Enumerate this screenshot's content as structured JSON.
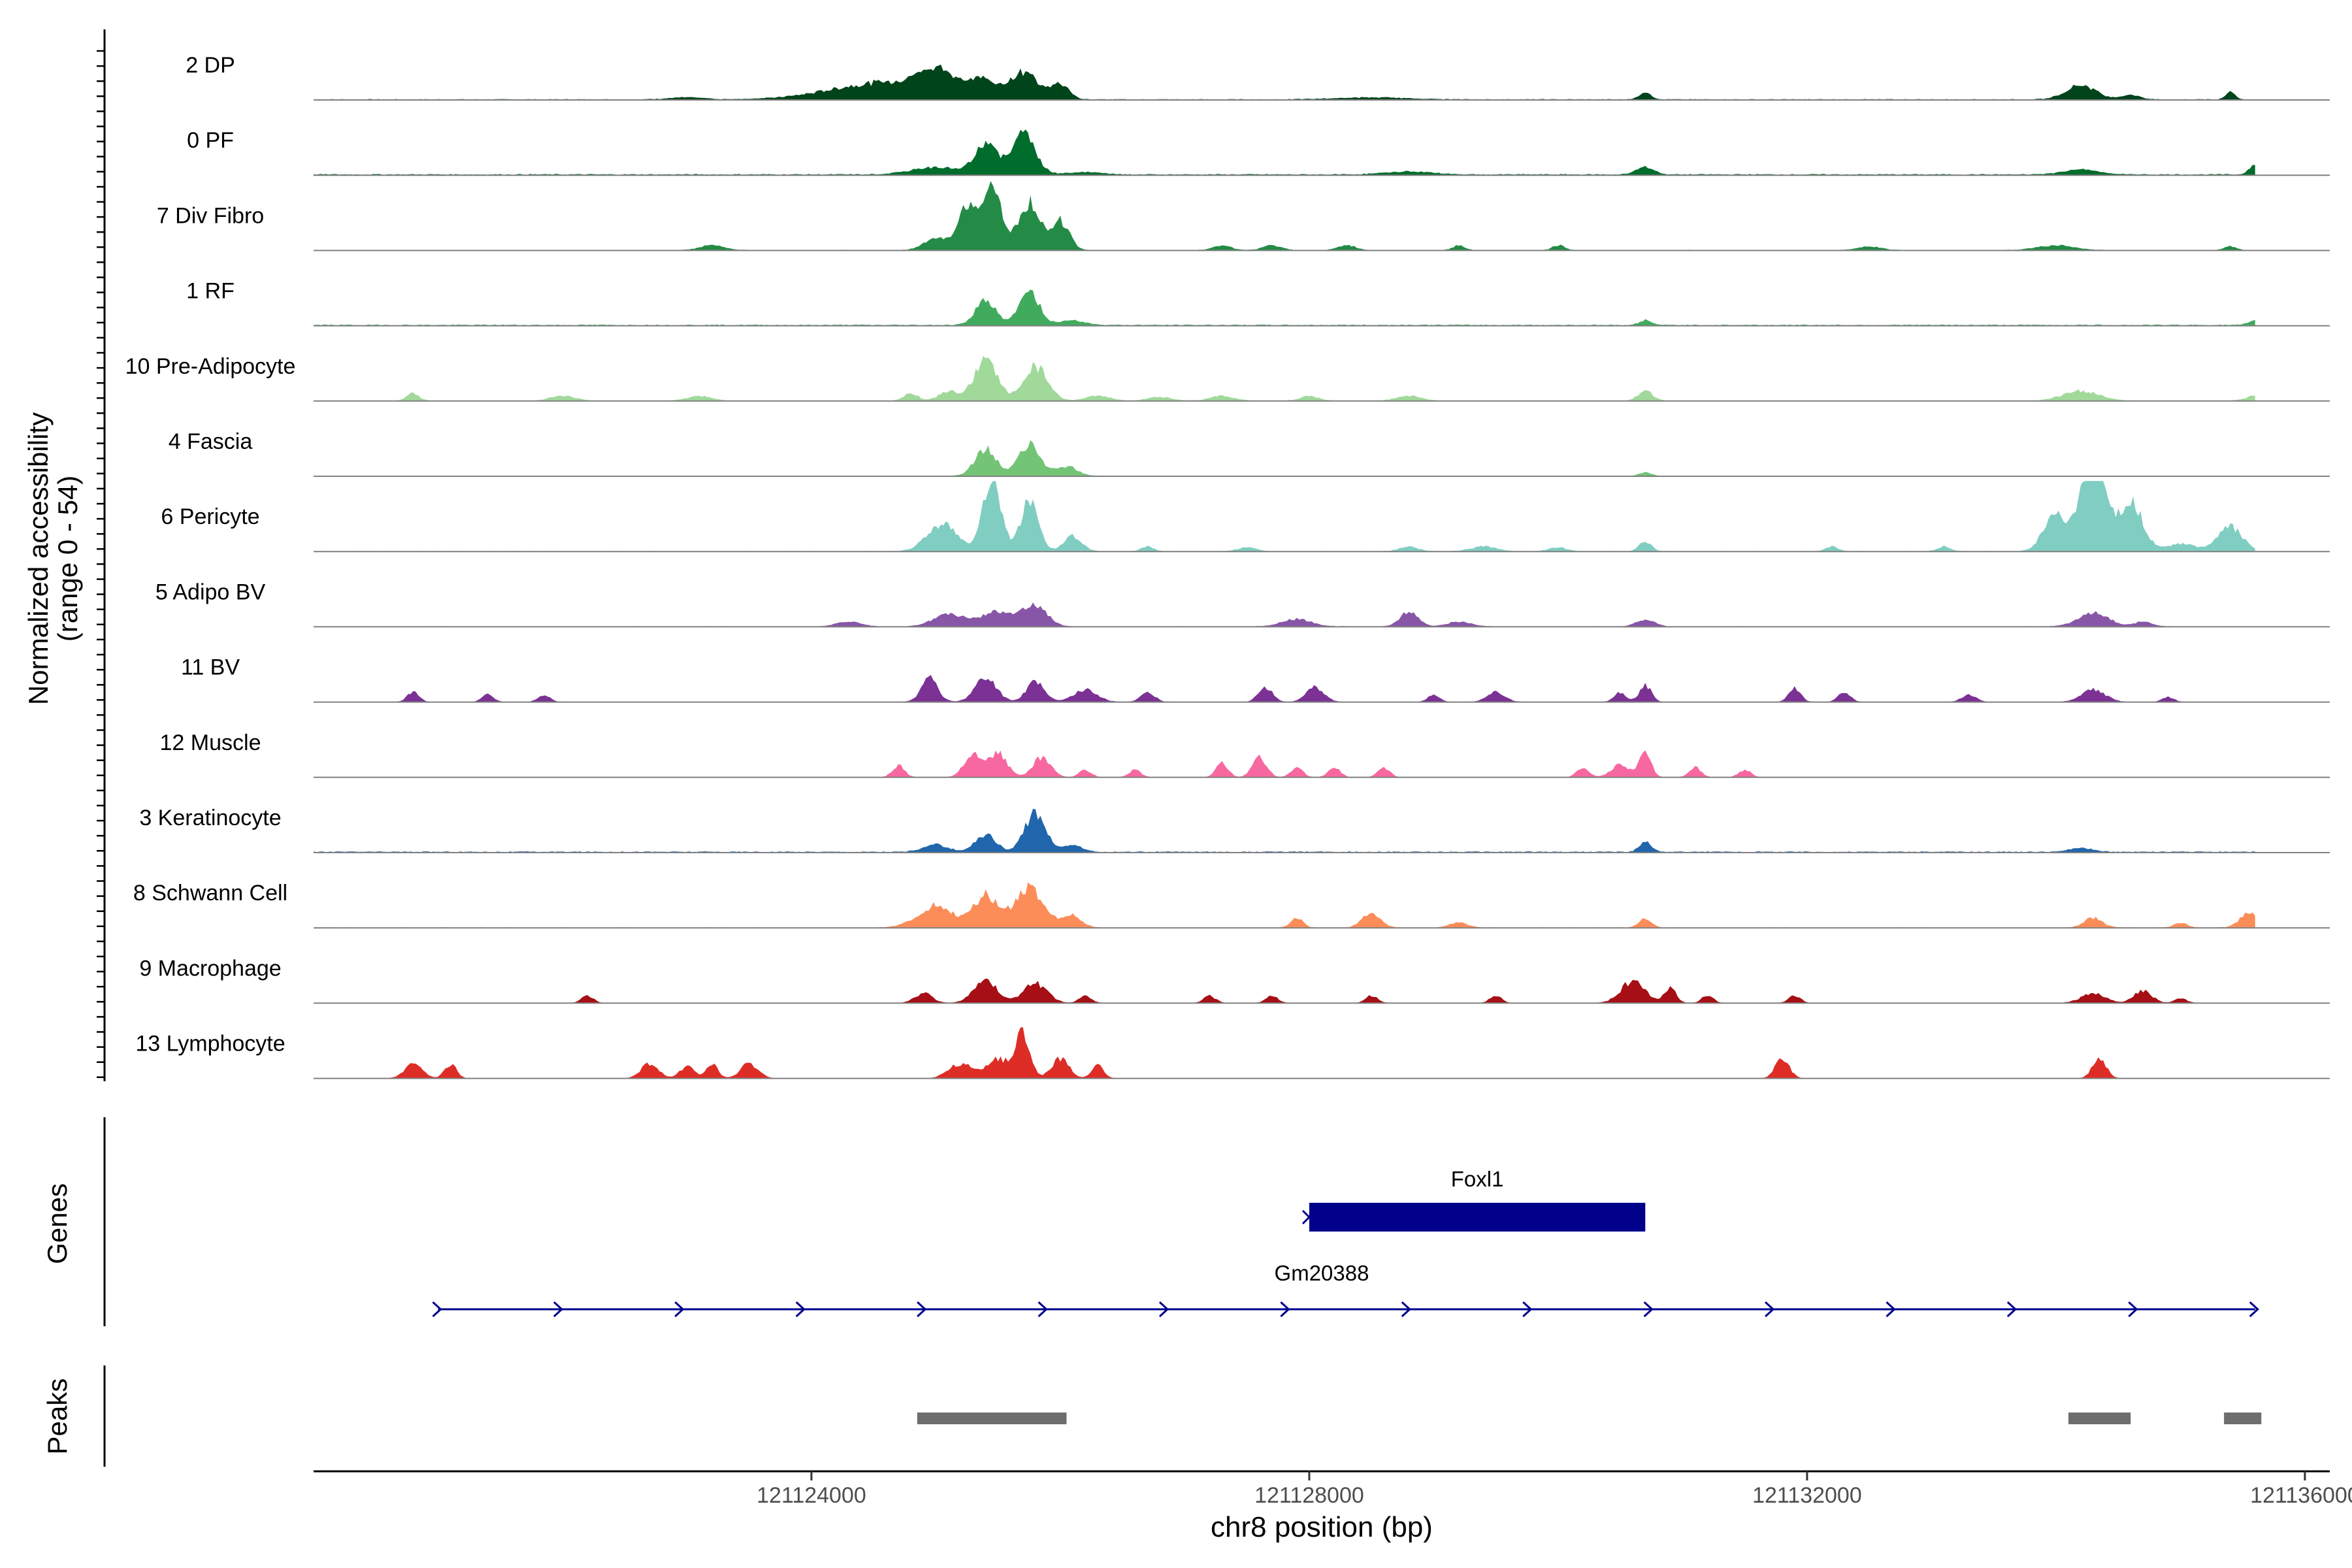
{
  "chart_data": {
    "type": "area",
    "title": "",
    "chromosome": "chr8",
    "xlabel": "chr8 position (bp)",
    "ylabel_line1": "Normalized accessibility",
    "ylabel_line2": "(range 0 - 54)",
    "y_range": [
      0,
      54
    ],
    "xlim": [
      121120000,
      121136200
    ],
    "x_ticks": [
      121124000,
      121128000,
      121132000,
      121136000
    ],
    "x_tick_labels": [
      "121124000",
      "121128000",
      "121132000",
      "121136000"
    ],
    "tracks": [
      {
        "name": "2 DP",
        "color": "#00441b",
        "baseline": 0.3,
        "peaks": [
          [
            121124600,
            900,
            7
          ],
          [
            121125000,
            300,
            9
          ],
          [
            121125350,
            220,
            7
          ],
          [
            121125700,
            250,
            11
          ],
          [
            121126000,
            150,
            6
          ],
          [
            121123000,
            300,
            0.8
          ],
          [
            121128500,
            600,
            0.8
          ],
          [
            121130700,
            100,
            3
          ],
          [
            121134200,
            250,
            6
          ],
          [
            121134600,
            150,
            2
          ],
          [
            121135400,
            80,
            3
          ]
        ]
      },
      {
        "name": "0 PF",
        "color": "#006d2c",
        "baseline": 0.4,
        "peaks": [
          [
            121125000,
            400,
            3
          ],
          [
            121125400,
            180,
            13
          ],
          [
            121125700,
            200,
            17
          ],
          [
            121126200,
            300,
            1
          ],
          [
            121128800,
            400,
            1.2
          ],
          [
            121130700,
            150,
            3
          ],
          [
            121134200,
            300,
            2
          ],
          [
            121135600,
            100,
            4
          ]
        ]
      },
      {
        "name": "7 Div Fibro",
        "color": "#238b45",
        "baseline": 0.2,
        "peaks": [
          [
            121125250,
            150,
            18
          ],
          [
            121125450,
            160,
            27
          ],
          [
            121125750,
            180,
            20
          ],
          [
            121126000,
            150,
            12
          ],
          [
            121125000,
            200,
            5
          ],
          [
            121123200,
            200,
            2
          ],
          [
            121127300,
            150,
            2
          ],
          [
            121127700,
            150,
            2
          ],
          [
            121128300,
            150,
            2
          ],
          [
            121129200,
            100,
            2
          ],
          [
            121130000,
            100,
            2
          ],
          [
            121132500,
            200,
            1.5
          ],
          [
            121134000,
            300,
            2
          ],
          [
            121135400,
            100,
            1.5
          ]
        ]
      },
      {
        "name": "1 RF",
        "color": "#41ab5d",
        "baseline": 0.4,
        "peaks": [
          [
            121125400,
            170,
            10
          ],
          [
            121125750,
            170,
            14
          ],
          [
            121126100,
            200,
            2
          ],
          [
            121130700,
            100,
            2
          ],
          [
            121135600,
            100,
            2
          ]
        ]
      },
      {
        "name": "10 Pre-Adipocyte",
        "color": "#a1d99b",
        "baseline": 0.2,
        "peaks": [
          [
            121125400,
            200,
            16
          ],
          [
            121125800,
            200,
            14
          ],
          [
            121125100,
            150,
            4
          ],
          [
            121124800,
            120,
            3
          ],
          [
            121120800,
            100,
            3
          ],
          [
            121122000,
            200,
            2
          ],
          [
            121123100,
            200,
            2
          ],
          [
            121126300,
            200,
            2
          ],
          [
            121126800,
            200,
            1.5
          ],
          [
            121127300,
            200,
            2
          ],
          [
            121128000,
            150,
            2
          ],
          [
            121128800,
            200,
            2
          ],
          [
            121130700,
            120,
            4
          ],
          [
            121134200,
            300,
            4
          ],
          [
            121135600,
            150,
            2
          ]
        ]
      },
      {
        "name": "4 Fascia",
        "color": "#74c476",
        "baseline": 0.2,
        "peaks": [
          [
            121125400,
            180,
            11
          ],
          [
            121125750,
            180,
            13
          ],
          [
            121126050,
            180,
            4
          ],
          [
            121130700,
            100,
            1.5
          ]
        ]
      },
      {
        "name": "6 Pericyte",
        "color": "#80cdc1",
        "baseline": 0.2,
        "peaks": [
          [
            121125450,
            150,
            30
          ],
          [
            121125750,
            150,
            20
          ],
          [
            121125050,
            250,
            11
          ],
          [
            121126100,
            150,
            6
          ],
          [
            121126700,
            100,
            2
          ],
          [
            121128800,
            150,
            2
          ],
          [
            121127500,
            150,
            1.5
          ],
          [
            121129400,
            200,
            2
          ],
          [
            121130000,
            150,
            1.5
          ],
          [
            121130700,
            100,
            4
          ],
          [
            121132200,
            100,
            2
          ],
          [
            121133100,
            100,
            2
          ],
          [
            121134000,
            200,
            15
          ],
          [
            121134300,
            200,
            40
          ],
          [
            121134600,
            200,
            20
          ],
          [
            121135000,
            250,
            3
          ],
          [
            121135400,
            200,
            10
          ]
        ]
      },
      {
        "name": "5 Adipo BV",
        "color": "#8856a7",
        "baseline": 0.2,
        "peaks": [
          [
            121125100,
            250,
            5
          ],
          [
            121125500,
            300,
            6
          ],
          [
            121125800,
            200,
            8
          ],
          [
            121124300,
            200,
            2
          ],
          [
            121127900,
            250,
            3
          ],
          [
            121128800,
            150,
            6
          ],
          [
            121129200,
            200,
            2
          ],
          [
            121130700,
            150,
            3
          ],
          [
            121134300,
            250,
            6
          ],
          [
            121134700,
            150,
            2
          ]
        ]
      },
      {
        "name": "11 BV",
        "color": "#7b3294",
        "baseline": 0.1,
        "peaks": [
          [
            121124950,
            150,
            7
          ],
          [
            121125400,
            180,
            10
          ],
          [
            121125800,
            150,
            9
          ],
          [
            121126200,
            200,
            5
          ],
          [
            121120800,
            100,
            4
          ],
          [
            121121400,
            100,
            3
          ],
          [
            121121850,
            100,
            3
          ],
          [
            121124950,
            100,
            3
          ],
          [
            121126700,
            120,
            4
          ],
          [
            121127650,
            120,
            6
          ],
          [
            121128050,
            150,
            6
          ],
          [
            121129000,
            100,
            3
          ],
          [
            121129500,
            150,
            4
          ],
          [
            121130500,
            100,
            4
          ],
          [
            121130700,
            100,
            7
          ],
          [
            121131900,
            100,
            6
          ],
          [
            121132300,
            100,
            4
          ],
          [
            121133300,
            120,
            3
          ],
          [
            121134300,
            200,
            5
          ],
          [
            121134900,
            100,
            2
          ]
        ]
      },
      {
        "name": "12 Muscle",
        "color": "#f768a1",
        "baseline": 0.1,
        "peaks": [
          [
            121124700,
            100,
            5
          ],
          [
            121125300,
            150,
            9
          ],
          [
            121125500,
            150,
            10
          ],
          [
            121125850,
            150,
            8
          ],
          [
            121126200,
            100,
            3
          ],
          [
            121126600,
            100,
            3
          ],
          [
            121127300,
            100,
            6
          ],
          [
            121127600,
            120,
            8
          ],
          [
            121127900,
            100,
            4
          ],
          [
            121128200,
            100,
            4
          ],
          [
            121128600,
            100,
            4
          ],
          [
            121130200,
            100,
            4
          ],
          [
            121130500,
            150,
            5
          ],
          [
            121130700,
            100,
            10
          ],
          [
            121131100,
            100,
            4
          ],
          [
            121131500,
            100,
            3
          ]
        ]
      },
      {
        "name": "3 Keratinocyte",
        "color": "#2166ac",
        "baseline": 0.4,
        "peaks": [
          [
            121125000,
            200,
            3
          ],
          [
            121125400,
            170,
            7
          ],
          [
            121125800,
            180,
            16
          ],
          [
            121126100,
            150,
            3
          ],
          [
            121130700,
            100,
            4
          ],
          [
            121134200,
            200,
            1.5
          ]
        ]
      },
      {
        "name": "8 Schwann Cell",
        "color": "#fc8d59",
        "baseline": 0.2,
        "peaks": [
          [
            121125000,
            300,
            9
          ],
          [
            121125400,
            200,
            13
          ],
          [
            121125750,
            250,
            16
          ],
          [
            121126100,
            150,
            5
          ],
          [
            121127900,
            100,
            4
          ],
          [
            121128500,
            150,
            6
          ],
          [
            121129200,
            150,
            2
          ],
          [
            121130700,
            100,
            4
          ],
          [
            121134300,
            150,
            4
          ],
          [
            121135000,
            100,
            2
          ],
          [
            121135550,
            150,
            6
          ]
        ]
      },
      {
        "name": "9 Macrophage",
        "color": "#a50f15",
        "baseline": 0.1,
        "peaks": [
          [
            121125400,
            200,
            9
          ],
          [
            121125800,
            200,
            8
          ],
          [
            121124900,
            150,
            4
          ],
          [
            121122200,
            100,
            3
          ],
          [
            121126200,
            100,
            3
          ],
          [
            121127200,
            100,
            3
          ],
          [
            121127700,
            100,
            3
          ],
          [
            121128500,
            100,
            3
          ],
          [
            121129500,
            100,
            3
          ],
          [
            121130600,
            200,
            9
          ],
          [
            121130900,
            100,
            6
          ],
          [
            121131200,
            100,
            3
          ],
          [
            121131900,
            100,
            3
          ],
          [
            121134300,
            200,
            4
          ],
          [
            121134700,
            150,
            5
          ],
          [
            121135000,
            100,
            2
          ]
        ]
      },
      {
        "name": "13 Lymphocyte",
        "color": "#de2d26",
        "baseline": 0.0,
        "peaks": [
          [
            121120800,
            150,
            6
          ],
          [
            121121100,
            100,
            6
          ],
          [
            121122700,
            150,
            6
          ],
          [
            121123000,
            120,
            5
          ],
          [
            121123200,
            100,
            6
          ],
          [
            121123500,
            150,
            6
          ],
          [
            121125200,
            200,
            6
          ],
          [
            121125500,
            200,
            8
          ],
          [
            121125700,
            120,
            18
          ],
          [
            121126000,
            150,
            8
          ],
          [
            121126300,
            100,
            6
          ],
          [
            121131800,
            120,
            8
          ],
          [
            121134350,
            120,
            8
          ]
        ]
      }
    ],
    "genes": [
      {
        "name": "Foxl1",
        "start": 121128000,
        "end": 121130700,
        "strand": "+",
        "style": "box",
        "color": "#00008b"
      },
      {
        "name": "Gm20388",
        "start": 121121000,
        "end": 121135600,
        "strand": "+",
        "style": "line",
        "color": "#00008b"
      }
    ],
    "peaks_track": [
      [
        121124850,
        121126050
      ],
      [
        121134100,
        121134600
      ],
      [
        121135350,
        121135650
      ]
    ],
    "peaks_color": "#6e6e6e",
    "panel_labels": {
      "genes": "Genes",
      "peaks": "Peaks"
    }
  }
}
